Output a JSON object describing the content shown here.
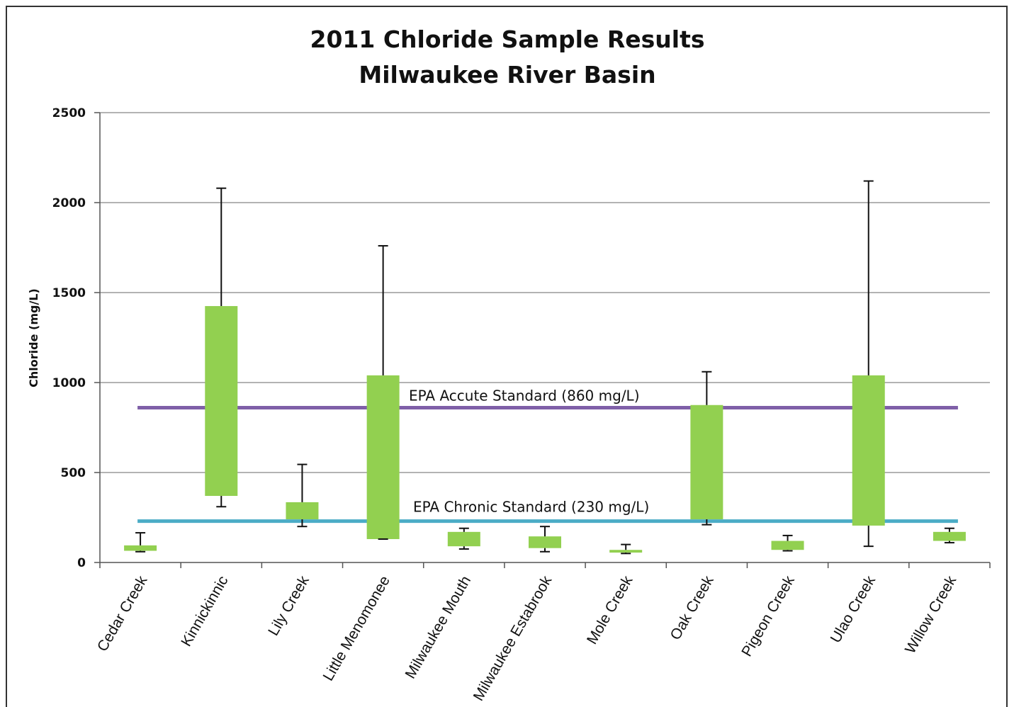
{
  "chart_data": {
    "type": "bar",
    "subtype": "floating-range-with-whiskers",
    "title": [
      "2011 Chloride Sample Results",
      "Milwaukee River Basin"
    ],
    "xlabel": "",
    "ylabel": "Chloride (mg/L)",
    "ylim": [
      0,
      2500
    ],
    "yticks": [
      0,
      500,
      1000,
      1500,
      2000,
      2500
    ],
    "grid": true,
    "legend": "none",
    "colors": {
      "box": "#92d050",
      "whisker": "#111111",
      "grid": "#9a9a9a",
      "acute": "#7f5fa8",
      "chronic": "#4bacc6"
    },
    "categories": [
      "Cedar Creek",
      "Kinnickinnic",
      "Lily Creek",
      "Little Menomonee",
      "Milwaukee Mouth",
      "Milwaukee Estabrook",
      "Mole Creek",
      "Oak Creek",
      "Pigeon Creek",
      "Ulao Creek",
      "Willow Creek"
    ],
    "series": [
      {
        "name": "",
        "role": "range",
        "min": [
          60,
          310,
          200,
          130,
          75,
          60,
          50,
          210,
          65,
          90,
          110
        ],
        "low": [
          65,
          370,
          240,
          130,
          90,
          80,
          55,
          240,
          70,
          205,
          120
        ],
        "high": [
          95,
          1425,
          335,
          1040,
          170,
          145,
          70,
          875,
          120,
          1040,
          170
        ],
        "max": [
          165,
          2080,
          545,
          1760,
          190,
          200,
          100,
          1060,
          150,
          2120,
          190
        ]
      }
    ],
    "reference_lines": [
      {
        "label": "EPA Accute Standard (860 mg/L)",
        "value": 860,
        "color": "#7f5fa8"
      },
      {
        "label": "EPA Chronic Standard (230 mg/L)",
        "value": 230,
        "color": "#4bacc6"
      }
    ]
  }
}
